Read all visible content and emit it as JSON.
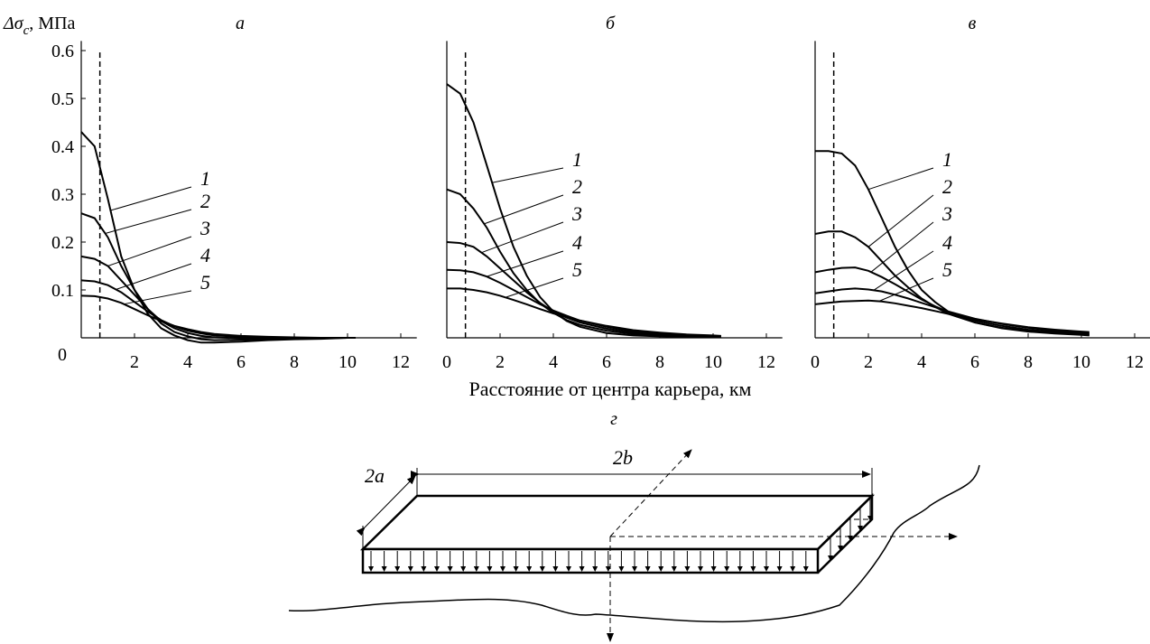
{
  "y_label": {
    "symbol": "Δσ",
    "subscript": "c",
    "unit": ", МПа"
  },
  "x_label": "Расстояние от центра карьера, км",
  "chart_data": [
    {
      "type": "line",
      "title": "а",
      "x": [
        0,
        0.5,
        1,
        1.5,
        2,
        2.5,
        3,
        3.5,
        4,
        4.5,
        5,
        6,
        7,
        8,
        9,
        10,
        10.3
      ],
      "series": [
        {
          "name": "1",
          "color": "#000000",
          "values": [
            0.43,
            0.4,
            0.29,
            0.17,
            0.1,
            0.05,
            0.02,
            0.005,
            -0.005,
            -0.01,
            -0.01,
            -0.008,
            -0.005,
            -0.003,
            -0.002,
            0,
            0
          ]
        },
        {
          "name": "2",
          "color": "#000000",
          "values": [
            0.26,
            0.25,
            0.21,
            0.15,
            0.1,
            0.06,
            0.03,
            0.012,
            0.003,
            -0.003,
            -0.005,
            -0.004,
            -0.003,
            -0.002,
            -0.001,
            0,
            0
          ]
        },
        {
          "name": "3",
          "color": "#000000",
          "values": [
            0.17,
            0.165,
            0.15,
            0.12,
            0.09,
            0.06,
            0.035,
            0.02,
            0.01,
            0.004,
            0.001,
            -0.001,
            -0.001,
            -0.001,
            0,
            0,
            0
          ]
        },
        {
          "name": "4",
          "color": "#000000",
          "values": [
            0.12,
            0.118,
            0.11,
            0.095,
            0.075,
            0.055,
            0.037,
            0.024,
            0.015,
            0.009,
            0.005,
            0.002,
            0.001,
            0,
            0,
            0,
            0
          ]
        },
        {
          "name": "5",
          "color": "#000000",
          "values": [
            0.088,
            0.087,
            0.082,
            0.073,
            0.06,
            0.047,
            0.035,
            0.025,
            0.018,
            0.012,
            0.008,
            0.004,
            0.002,
            0.001,
            0,
            0,
            0
          ]
        }
      ],
      "xlim": [
        0,
        12.6
      ],
      "ylim": [
        0,
        0.62
      ],
      "xticks": [
        2,
        4,
        6,
        8,
        10,
        12
      ],
      "yticks": [
        0,
        0.1,
        0.2,
        0.3,
        0.4,
        0.5,
        0.6
      ],
      "vline": 0.7
    },
    {
      "type": "line",
      "title": "б",
      "x": [
        0,
        0.5,
        1,
        1.5,
        2,
        2.5,
        3,
        3.5,
        4,
        4.5,
        5,
        6,
        7,
        8,
        9,
        10,
        10.3
      ],
      "series": [
        {
          "name": "1",
          "color": "#000000",
          "values": [
            0.53,
            0.51,
            0.45,
            0.36,
            0.27,
            0.19,
            0.13,
            0.085,
            0.055,
            0.035,
            0.023,
            0.01,
            0.005,
            0.003,
            0.002,
            0.001,
            0.001
          ]
        },
        {
          "name": "2",
          "color": "#000000",
          "values": [
            0.31,
            0.3,
            0.27,
            0.23,
            0.18,
            0.135,
            0.1,
            0.072,
            0.052,
            0.037,
            0.027,
            0.015,
            0.008,
            0.005,
            0.003,
            0.002,
            0.002
          ]
        },
        {
          "name": "3",
          "color": "#000000",
          "values": [
            0.2,
            0.198,
            0.19,
            0.17,
            0.145,
            0.12,
            0.095,
            0.073,
            0.055,
            0.042,
            0.032,
            0.019,
            0.011,
            0.007,
            0.004,
            0.003,
            0.002
          ]
        },
        {
          "name": "4",
          "color": "#000000",
          "values": [
            0.142,
            0.141,
            0.137,
            0.128,
            0.115,
            0.1,
            0.085,
            0.07,
            0.057,
            0.046,
            0.036,
            0.023,
            0.014,
            0.009,
            0.006,
            0.004,
            0.003
          ]
        },
        {
          "name": "5",
          "color": "#000000",
          "values": [
            0.103,
            0.103,
            0.1,
            0.095,
            0.088,
            0.079,
            0.07,
            0.06,
            0.051,
            0.043,
            0.036,
            0.025,
            0.016,
            0.011,
            0.007,
            0.005,
            0.004
          ]
        }
      ],
      "xlim": [
        0,
        12.6
      ],
      "ylim": [
        0,
        0.62
      ],
      "xticks": [
        0,
        2,
        4,
        6,
        8,
        10,
        12
      ],
      "vline": 0.7
    },
    {
      "type": "line",
      "title": "в",
      "x": [
        0,
        0.5,
        1,
        1.5,
        2,
        2.5,
        3,
        3.5,
        4,
        4.5,
        5,
        6,
        7,
        8,
        9,
        10,
        10.3
      ],
      "series": [
        {
          "name": "1",
          "color": "#000000",
          "values": [
            0.39,
            0.39,
            0.385,
            0.36,
            0.31,
            0.25,
            0.19,
            0.14,
            0.1,
            0.075,
            0.055,
            0.032,
            0.02,
            0.013,
            0.009,
            0.006,
            0.005
          ]
        },
        {
          "name": "2",
          "color": "#000000",
          "values": [
            0.217,
            0.222,
            0.222,
            0.21,
            0.19,
            0.16,
            0.13,
            0.105,
            0.082,
            0.065,
            0.05,
            0.032,
            0.021,
            0.015,
            0.01,
            0.007,
            0.006
          ]
        },
        {
          "name": "3",
          "color": "#000000",
          "values": [
            0.137,
            0.142,
            0.146,
            0.147,
            0.14,
            0.127,
            0.112,
            0.096,
            0.08,
            0.066,
            0.054,
            0.036,
            0.025,
            0.017,
            0.012,
            0.009,
            0.008
          ]
        },
        {
          "name": "4",
          "color": "#000000",
          "values": [
            0.093,
            0.097,
            0.101,
            0.103,
            0.101,
            0.097,
            0.09,
            0.082,
            0.073,
            0.064,
            0.055,
            0.04,
            0.029,
            0.021,
            0.015,
            0.011,
            0.01
          ]
        },
        {
          "name": "5",
          "color": "#000000",
          "values": [
            0.07,
            0.073,
            0.076,
            0.077,
            0.078,
            0.076,
            0.072,
            0.067,
            0.062,
            0.056,
            0.05,
            0.039,
            0.03,
            0.022,
            0.017,
            0.013,
            0.012
          ]
        }
      ],
      "xlim": [
        0,
        12.6
      ],
      "ylim": [
        0,
        0.62
      ],
      "xticks": [
        0,
        2,
        4,
        6,
        8,
        10,
        12
      ],
      "vline": 0.7
    }
  ],
  "diagram": {
    "title": "г",
    "width_label": "2a",
    "length_label": "2b"
  }
}
